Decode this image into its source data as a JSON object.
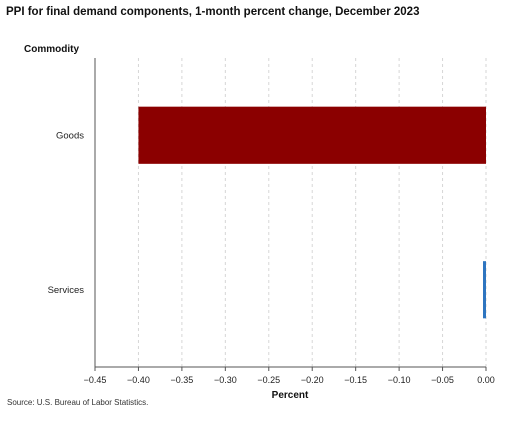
{
  "title": "PPI for final demand components, 1-month percent change, December 2023",
  "source": "Source: U.S. Bureau of Labor Statistics.",
  "chart_data": {
    "type": "bar",
    "orientation": "horizontal",
    "categories": [
      "Goods",
      "Services"
    ],
    "values": [
      -0.4,
      -0.002
    ],
    "bar_colors": [
      "#8b0000",
      "#2e75c0"
    ],
    "ylabel": "Commodity",
    "xlabel": "Percent",
    "xlim": [
      -0.45,
      0.0
    ],
    "xticks": [
      -0.45,
      -0.4,
      -0.35,
      -0.3,
      -0.25,
      -0.2,
      -0.15,
      -0.1,
      -0.05,
      0.0
    ],
    "xtick_labels": [
      "−0.45",
      "−0.40",
      "−0.35",
      "−0.30",
      "−0.25",
      "−0.20",
      "−0.15",
      "−0.10",
      "−0.05",
      "0.00"
    ],
    "grid": "vertical-dashed",
    "legend": "none"
  }
}
